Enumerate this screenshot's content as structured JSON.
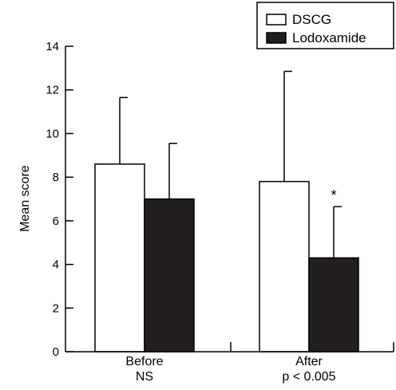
{
  "chart_data": {
    "type": "bar",
    "ylabel": "Mean score",
    "ylim": [
      0,
      14
    ],
    "yticks": [
      0,
      2,
      4,
      6,
      8,
      10,
      12,
      14
    ],
    "grid": false,
    "legend_position": "top-right",
    "categories": [
      {
        "label": "Before",
        "sublabel": "NS"
      },
      {
        "label": "After",
        "sublabel": "p < 0.005"
      }
    ],
    "series": [
      {
        "name": "DSCG",
        "color": "#ffffff",
        "values": [
          8.6,
          7.8
        ],
        "error_upper": [
          11.65,
          12.85
        ]
      },
      {
        "name": "Lodoxamide",
        "color": "#231f20",
        "values": [
          7.0,
          4.3
        ],
        "error_upper": [
          9.55,
          6.65
        ]
      }
    ],
    "annotations": [
      {
        "text": "*",
        "series": "Lodoxamide",
        "category": "After"
      }
    ]
  }
}
